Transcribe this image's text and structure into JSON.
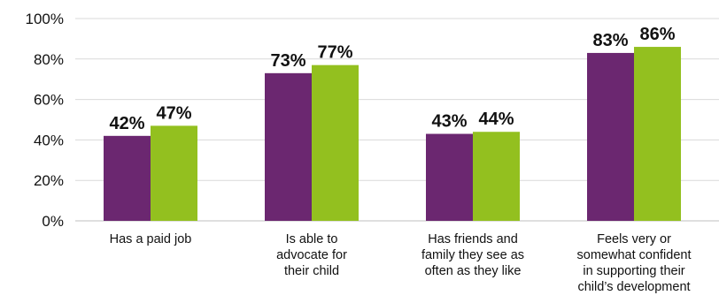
{
  "chart_data": {
    "type": "bar",
    "categories": [
      [
        "Has a paid job"
      ],
      [
        "Is able to",
        "advocate for",
        "their child"
      ],
      [
        "Has friends and",
        "family they see as",
        "often as they like"
      ],
      [
        "Feels very or",
        "somewhat confident",
        "in supporting their",
        "child’s development"
      ]
    ],
    "series": [
      {
        "values": [
          42,
          73,
          43,
          83
        ],
        "labels": [
          "42%",
          "73%",
          "43%",
          "83%"
        ],
        "color": "#6b2770"
      },
      {
        "values": [
          47,
          77,
          44,
          86
        ],
        "labels": [
          "47%",
          "77%",
          "44%",
          "86%"
        ],
        "color": "#93c01f"
      }
    ],
    "yticks": [
      "0%",
      "20%",
      "40%",
      "60%",
      "80%",
      "100%"
    ],
    "ylim": [
      0,
      100
    ],
    "title": "",
    "xlabel": "",
    "ylabel": "",
    "grid": true,
    "legend": "none"
  }
}
